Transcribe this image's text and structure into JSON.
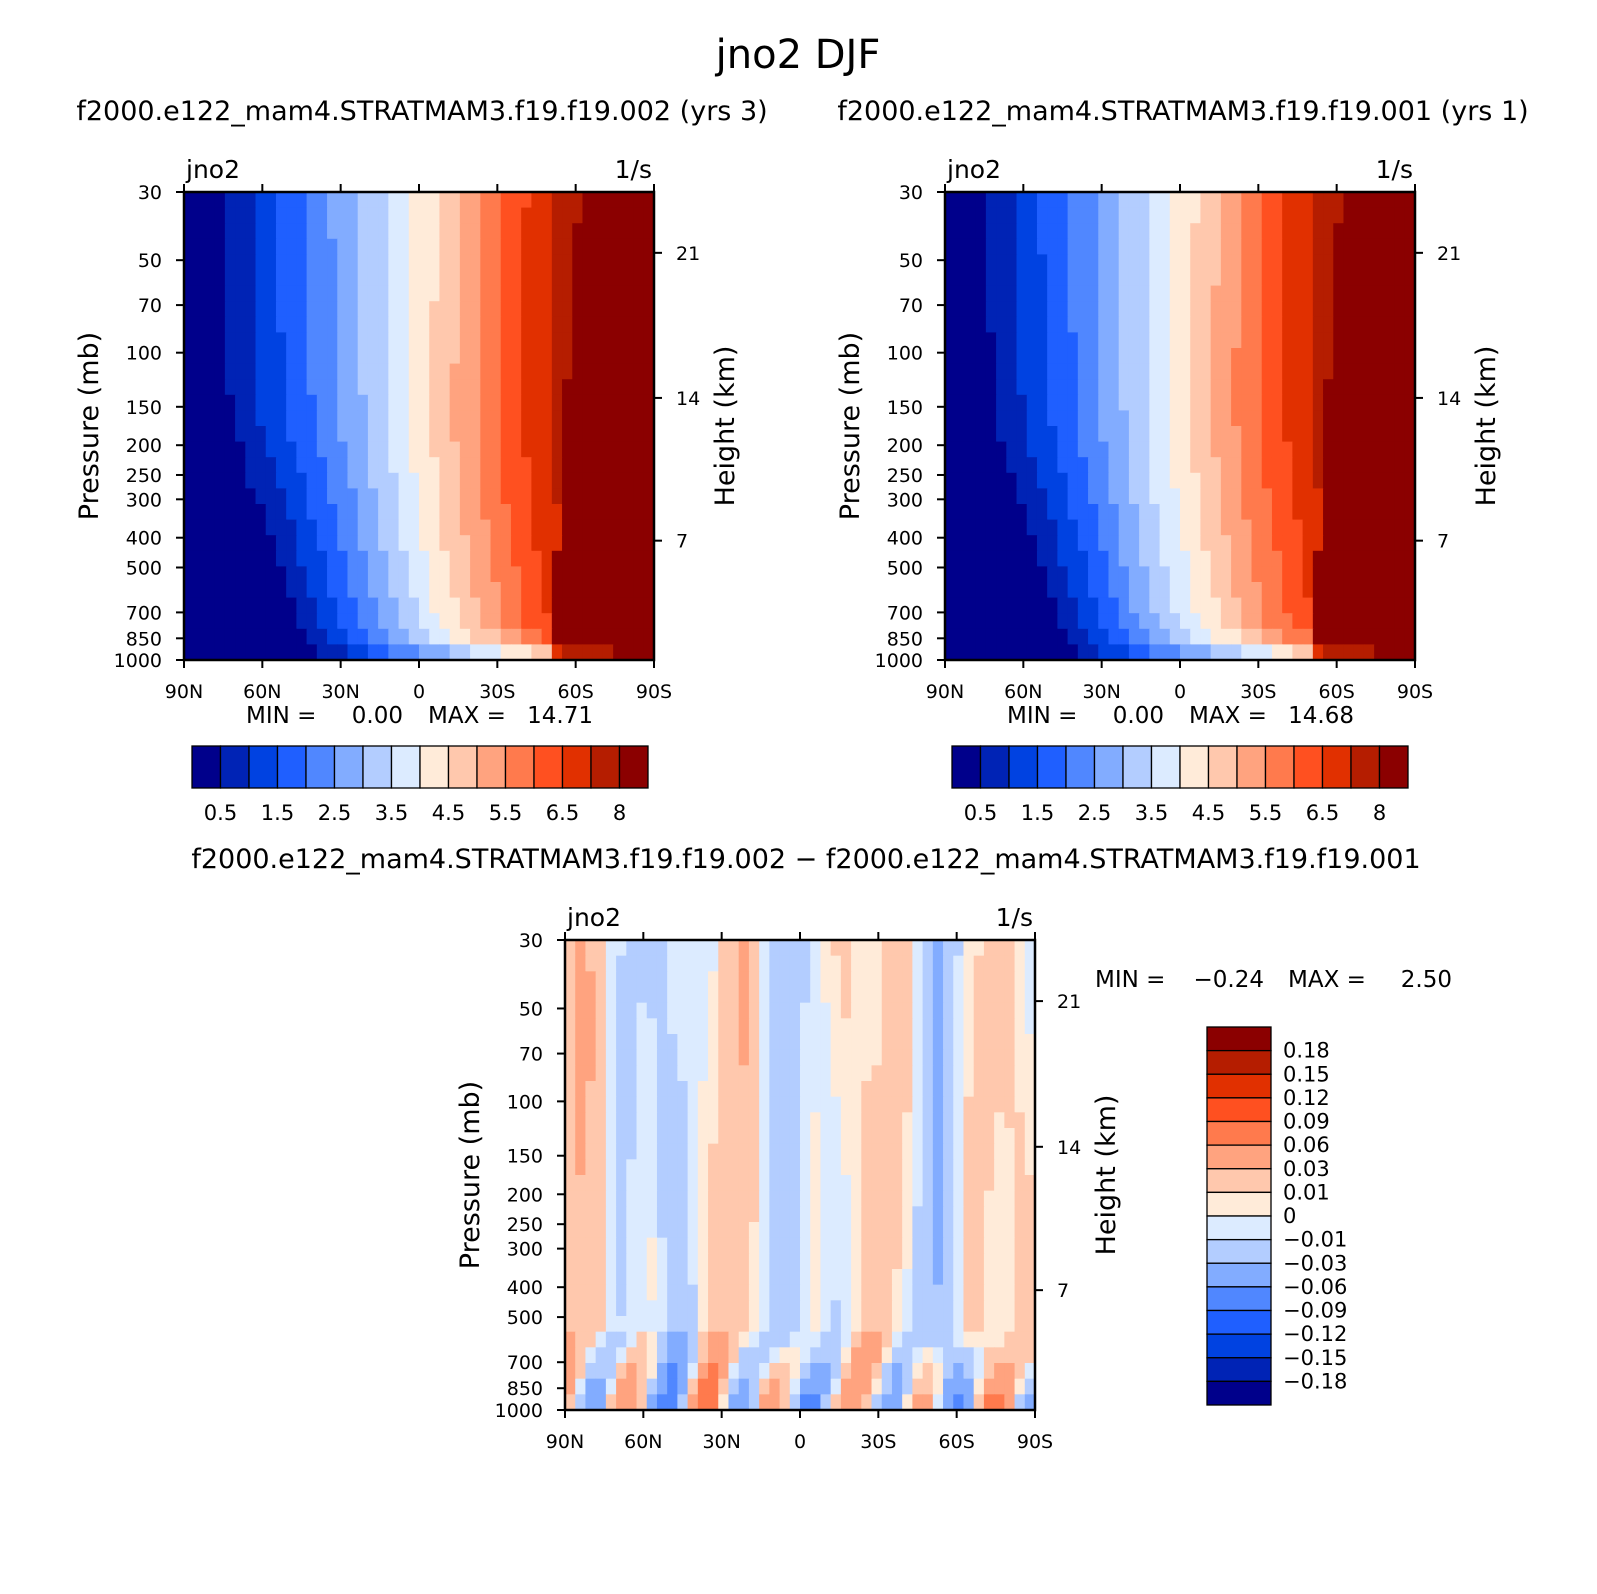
{
  "figure_title": "jno2 DJF",
  "colors": {
    "diverging": [
      "#00008b",
      "#0023b5",
      "#0042e1",
      "#1f5fff",
      "#5087ff",
      "#82acff",
      "#b3cdff",
      "#dcebff",
      "#ffebd9",
      "#ffc8ad",
      "#ffa37f",
      "#ff7a4d",
      "#ff5020",
      "#e13000",
      "#b51d00",
      "#8b0000"
    ]
  },
  "chart_data": [
    {
      "type": "contour",
      "title": "f2000.e122_mam4.STRATMAM3.f19.f19.002 (yrs 3)",
      "variable": "jno2",
      "units": "1/s",
      "xlabel": "",
      "ylabel": "Pressure (mb)",
      "y2label": "Height (km)",
      "x_ticks": [
        "90N",
        "60N",
        "30N",
        "0",
        "30S",
        "60S",
        "90S"
      ],
      "y_ticks": [
        30,
        50,
        70,
        100,
        150,
        200,
        250,
        300,
        400,
        500,
        700,
        850,
        1000
      ],
      "y2_ticks": [
        21,
        14,
        7
      ],
      "xlim": [
        90,
        -90
      ],
      "ylim": [
        1000,
        30
      ],
      "min_label": "MIN =",
      "min_value": "0.00",
      "max_label": "MAX =",
      "max_value": "14.71",
      "colorbar_labels": [
        "0.5",
        "1.5",
        "2.5",
        "3.5",
        "4.5",
        "5.5",
        "6.5",
        "8"
      ]
    },
    {
      "type": "contour",
      "title": "f2000.e122_mam4.STRATMAM3.f19.f19.001 (yrs 1)",
      "variable": "jno2",
      "units": "1/s",
      "xlabel": "",
      "ylabel": "Pressure (mb)",
      "y2label": "Height (km)",
      "x_ticks": [
        "90N",
        "60N",
        "30N",
        "0",
        "30S",
        "60S",
        "90S"
      ],
      "y_ticks": [
        30,
        50,
        70,
        100,
        150,
        200,
        250,
        300,
        400,
        500,
        700,
        850,
        1000
      ],
      "y2_ticks": [
        21,
        14,
        7
      ],
      "xlim": [
        90,
        -90
      ],
      "ylim": [
        1000,
        30
      ],
      "min_label": "MIN =",
      "min_value": "0.00",
      "max_label": "MAX =",
      "max_value": "14.68",
      "colorbar_labels": [
        "0.5",
        "1.5",
        "2.5",
        "3.5",
        "4.5",
        "5.5",
        "6.5",
        "8"
      ]
    },
    {
      "type": "contour",
      "title": "f2000.e122_mam4.STRATMAM3.f19.f19.002 − f2000.e122_mam4.STRATMAM3.f19.f19.001",
      "variable": "jno2",
      "units": "1/s",
      "xlabel": "",
      "ylabel": "Pressure (mb)",
      "y2label": "Height (km)",
      "x_ticks": [
        "90N",
        "60N",
        "30N",
        "0",
        "30S",
        "60S",
        "90S"
      ],
      "y_ticks": [
        30,
        50,
        70,
        100,
        150,
        200,
        250,
        300,
        400,
        500,
        700,
        850,
        1000
      ],
      "y2_ticks": [
        21,
        14,
        7
      ],
      "xlim": [
        90,
        -90
      ],
      "ylim": [
        1000,
        30
      ],
      "min_label": "MIN =",
      "min_value": "−0.24",
      "max_label": "MAX =",
      "max_value": "2.50",
      "colorbar_labels": [
        "0.18",
        "0.15",
        "0.12",
        "0.09",
        "0.06",
        "0.03",
        "0.01",
        "0",
        "−0.01",
        "−0.03",
        "−0.06",
        "−0.09",
        "−0.12",
        "−0.15",
        "−0.18"
      ]
    }
  ]
}
